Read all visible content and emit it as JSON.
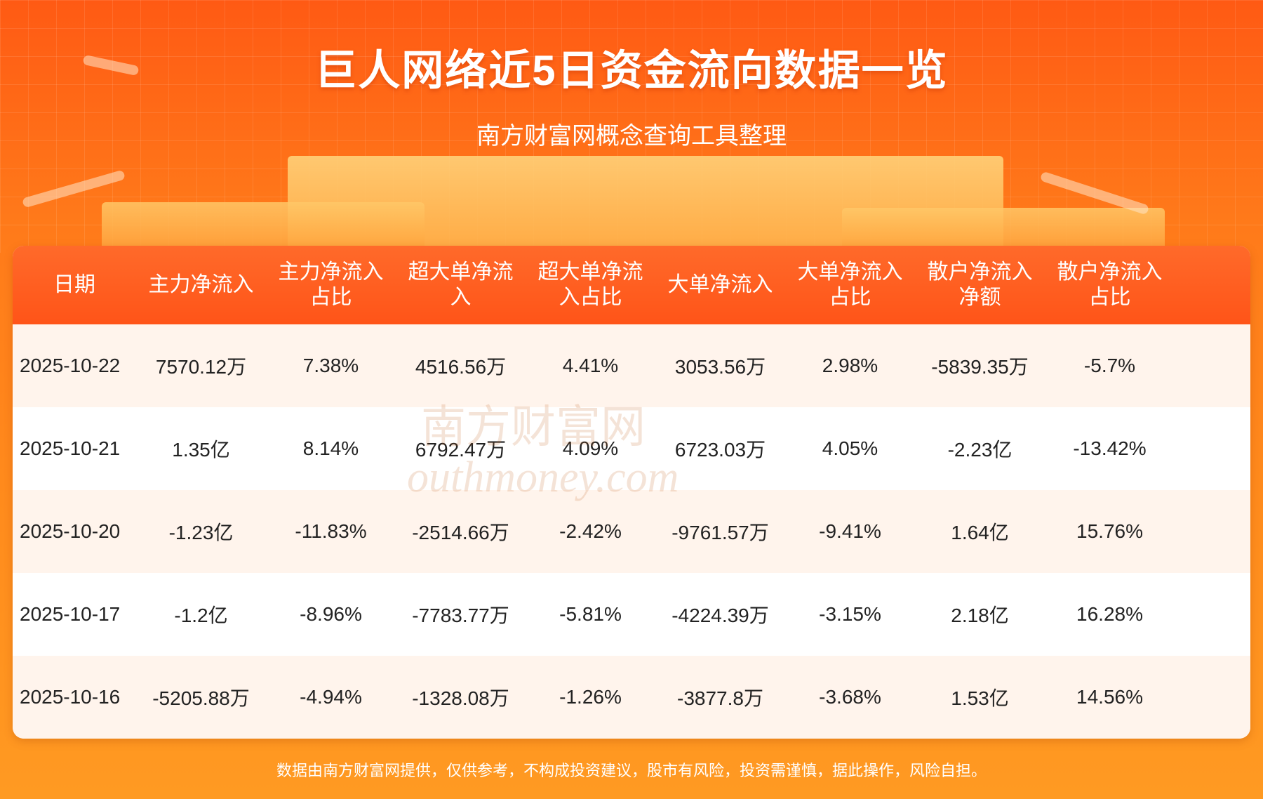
{
  "header": {
    "title": "巨人网络近5日资金流向数据一览",
    "subtitle": "南方财富网概念查询工具整理"
  },
  "watermark": {
    "line1": "南方财富网",
    "line2": "outhmoney.com"
  },
  "colors": {
    "accent": "#ff5a14",
    "header_row": "#ff5e1f",
    "row_alt": "#fff4ec"
  },
  "chart_data": {
    "type": "table",
    "columns": [
      "日期",
      "主力净流入",
      "主力净流入占比",
      "超大单净流入",
      "超大单净流入占比",
      "大单净流入",
      "大单净流入占比",
      "散户净流入净额",
      "散户净流入占比"
    ],
    "rows": [
      [
        "2025-10-22",
        "7570.12万",
        "7.38%",
        "4516.56万",
        "4.41%",
        "3053.56万",
        "2.98%",
        "-5839.35万",
        "-5.7%"
      ],
      [
        "2025-10-21",
        "1.35亿",
        "8.14%",
        "6792.47万",
        "4.09%",
        "6723.03万",
        "4.05%",
        "-2.23亿",
        "-13.42%"
      ],
      [
        "2025-10-20",
        "-1.23亿",
        "-11.83%",
        "-2514.66万",
        "-2.42%",
        "-9761.57万",
        "-9.41%",
        "1.64亿",
        "15.76%"
      ],
      [
        "2025-10-17",
        "-1.2亿",
        "-8.96%",
        "-7783.77万",
        "-5.81%",
        "-4224.39万",
        "-3.15%",
        "2.18亿",
        "16.28%"
      ],
      [
        "2025-10-16",
        "-5205.88万",
        "-4.94%",
        "-1328.08万",
        "-1.26%",
        "-3877.8万",
        "-3.68%",
        "1.53亿",
        "14.56%"
      ]
    ]
  },
  "footer": {
    "disclaimer": "数据由南方财富网提供，仅供参考，不构成投资建议，股市有风险，投资需谨慎，据此操作，风险自担。"
  }
}
